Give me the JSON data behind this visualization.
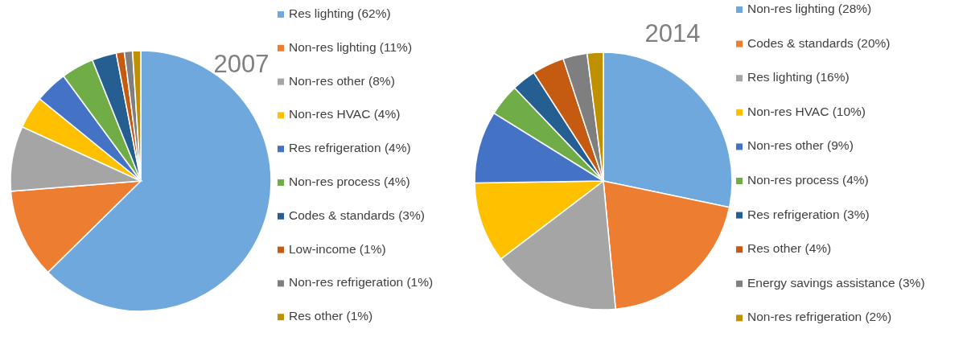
{
  "chart_data": [
    {
      "type": "pie",
      "title": "2007",
      "legend": "right",
      "categories": [
        "Res lighting (62%)",
        "Non-res lighting (11%)",
        "Non-res other (8%)",
        "Non-res HVAC (4%)",
        "Res refrigeration (4%)",
        "Non-res process (4%)",
        "Codes & standards (3%)",
        "Low-income (1%)",
        "Non-res refrigeration (1%)",
        "Res other (1%)"
      ],
      "values": [
        62,
        11,
        8,
        4,
        4,
        4,
        3,
        1,
        1,
        1
      ],
      "colors": [
        "#6fa8dc",
        "#ed7d31",
        "#a5a5a5",
        "#ffc000",
        "#4472c4",
        "#70ad47",
        "#255e91",
        "#c55a11",
        "#7f7f7f",
        "#bf9000"
      ]
    },
    {
      "type": "pie",
      "title": "2014",
      "legend": "right",
      "categories": [
        "Non-res lighting (28%)",
        "Codes & standards (20%)",
        "Res lighting (16%)",
        "Non-res HVAC (10%)",
        "Non-res other (9%)",
        "Non-res process (4%)",
        "Res refrigeration (3%)",
        "Res other (4%)",
        "Energy savings assistance (3%)",
        "Non-res refrigeration (2%)"
      ],
      "values": [
        28,
        20,
        16,
        10,
        9,
        4,
        3,
        4,
        3,
        2
      ],
      "colors": [
        "#6fa8dc",
        "#ed7d31",
        "#a5a5a5",
        "#ffc000",
        "#4472c4",
        "#70ad47",
        "#255e91",
        "#c55a11",
        "#7f7f7f",
        "#bf9000"
      ]
    }
  ]
}
